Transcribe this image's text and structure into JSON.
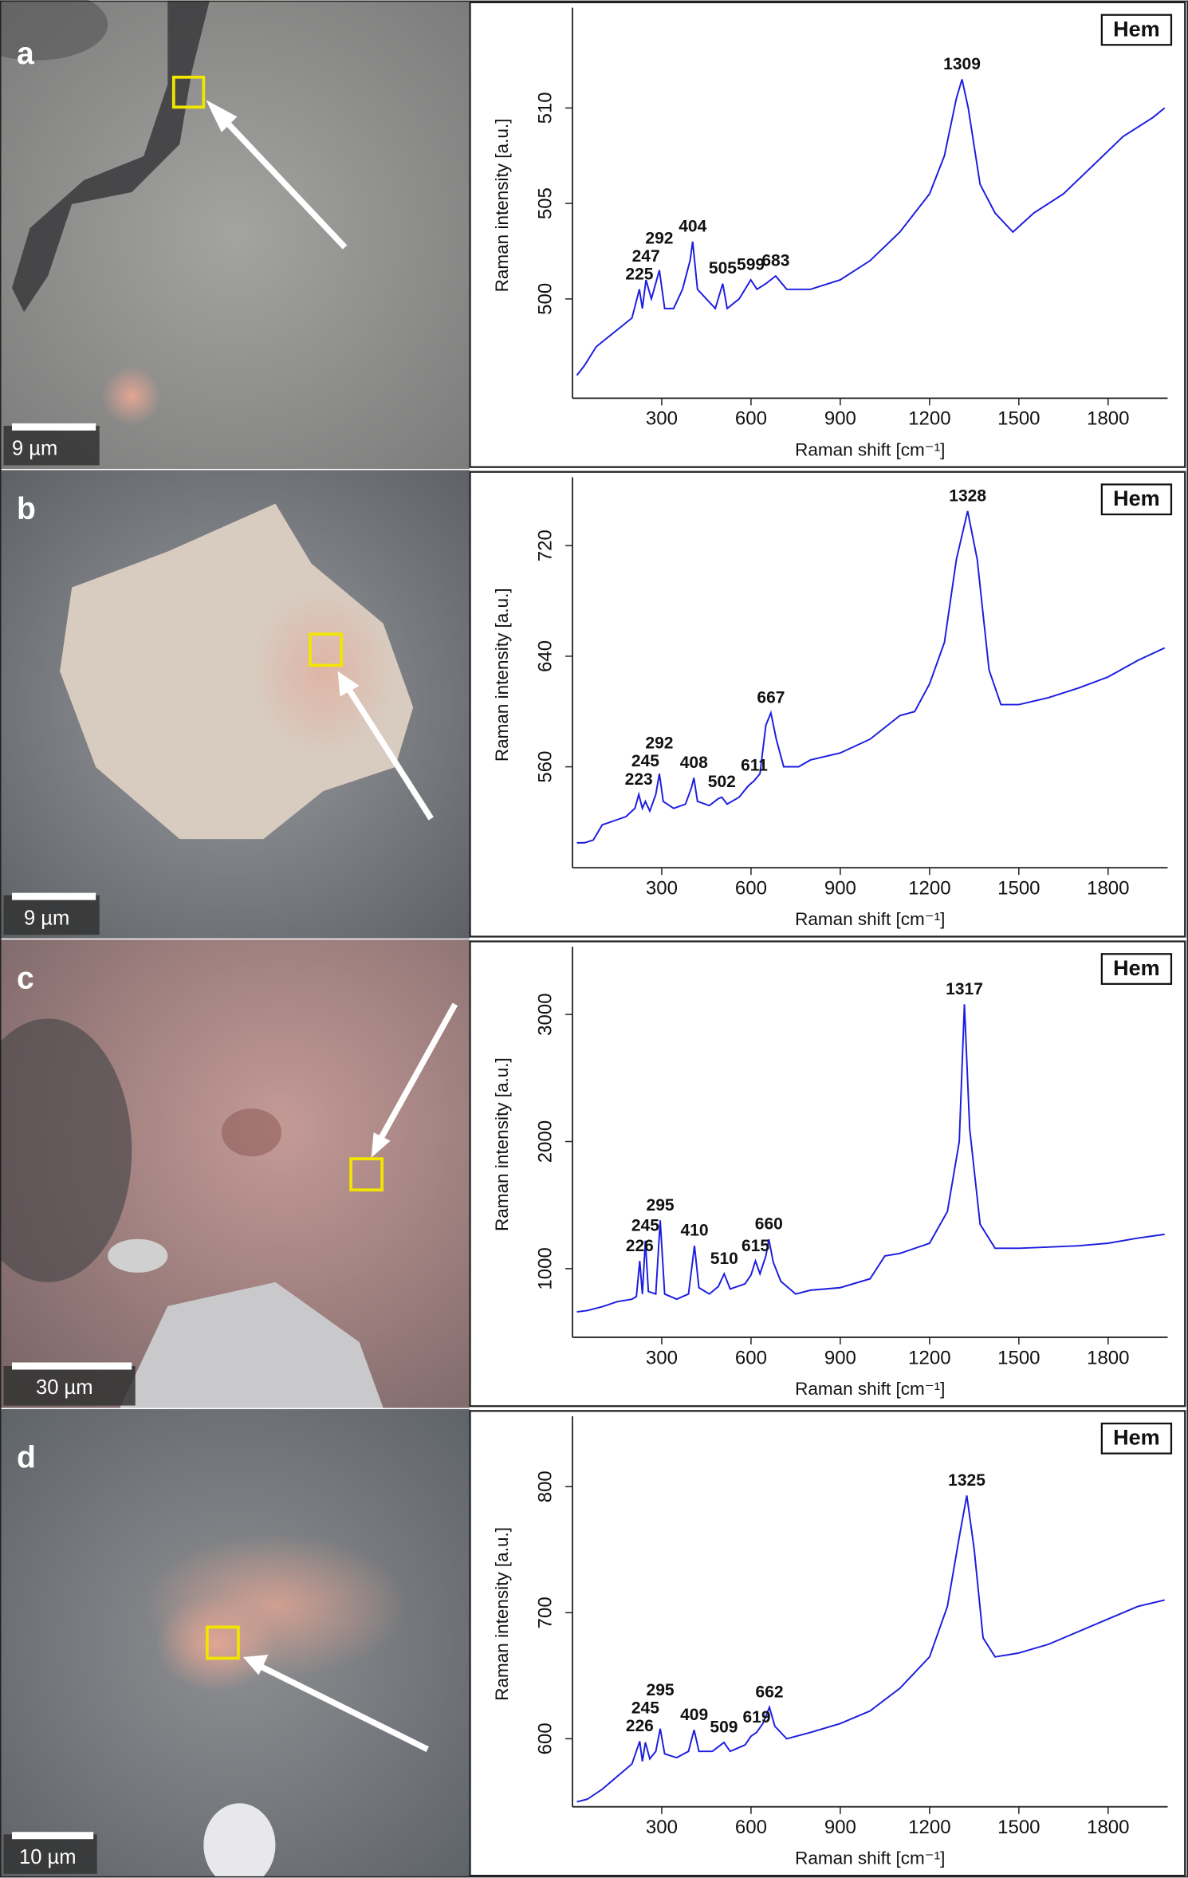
{
  "chart_data": [
    {
      "type": "line",
      "panel": "a",
      "label": "Hem",
      "scale_bar": "9 µm",
      "color": "#1c1ce0",
      "x_label": "Raman shift [cm⁻¹]",
      "y_label": "Raman intensity [a.u.]",
      "xlim": [
        0,
        2000
      ],
      "xticks": [
        300,
        600,
        900,
        1200,
        1500,
        1800
      ],
      "ylim": [
        494.8,
        515
      ],
      "yticks": [
        500,
        505,
        510
      ],
      "x": [
        15,
        40,
        80,
        120,
        160,
        200,
        225,
        235,
        247,
        265,
        292,
        310,
        340,
        370,
        395,
        404,
        420,
        450,
        480,
        505,
        520,
        560,
        599,
        620,
        650,
        683,
        720,
        800,
        900,
        1000,
        1100,
        1200,
        1250,
        1290,
        1309,
        1330,
        1370,
        1420,
        1480,
        1550,
        1650,
        1750,
        1850,
        1950,
        1990
      ],
      "values": [
        496,
        496.5,
        497.5,
        498,
        498.5,
        499,
        500.5,
        499.5,
        501,
        500,
        501.5,
        499.5,
        499.5,
        500.5,
        502,
        503,
        500.5,
        500,
        499.5,
        500.8,
        499.5,
        500,
        501,
        500.5,
        500.8,
        501.2,
        500.5,
        500.5,
        501,
        502,
        503.5,
        505.5,
        507.5,
        510.5,
        511.5,
        510,
        506,
        504.5,
        503.5,
        504.5,
        505.5,
        507,
        508.5,
        509.5,
        510
      ],
      "peaks": [
        225,
        247,
        292,
        404,
        505,
        599,
        683,
        1309
      ]
    },
    {
      "type": "line",
      "panel": "b",
      "label": "Hem",
      "scale_bar": "9 µm",
      "color": "#1c1ce0",
      "x_label": "Raman shift [cm⁻¹]",
      "y_label": "Raman intensity [a.u.]",
      "xlim": [
        0,
        2000
      ],
      "xticks": [
        300,
        600,
        900,
        1200,
        1500,
        1800
      ],
      "ylim": [
        487,
        766
      ],
      "yticks": [
        560,
        640,
        720
      ],
      "x": [
        15,
        40,
        70,
        100,
        140,
        180,
        210,
        223,
        235,
        245,
        260,
        280,
        292,
        305,
        340,
        380,
        400,
        408,
        420,
        460,
        490,
        502,
        520,
        560,
        590,
        611,
        630,
        650,
        667,
        685,
        710,
        760,
        800,
        900,
        1000,
        1100,
        1150,
        1200,
        1250,
        1290,
        1328,
        1360,
        1400,
        1440,
        1500,
        1600,
        1700,
        1800,
        1900,
        1990
      ],
      "values": [
        505,
        505,
        507,
        518,
        521,
        524,
        530,
        540,
        530,
        535,
        528,
        540,
        555,
        535,
        530,
        533,
        545,
        552,
        535,
        532,
        537,
        538,
        533,
        538,
        546,
        550,
        555,
        590,
        599,
        580,
        560,
        560,
        565,
        570,
        580,
        597,
        600,
        620,
        650,
        710,
        745,
        710,
        630,
        605,
        605,
        610,
        617,
        625,
        637,
        646
      ],
      "peaks": [
        223,
        245,
        292,
        408,
        502,
        611,
        667,
        1328
      ]
    },
    {
      "type": "line",
      "panel": "c",
      "label": "Hem",
      "scale_bar": "30 µm",
      "color": "#1c1ce0",
      "x_label": "Raman shift [cm⁻¹]",
      "y_label": "Raman intensity [a.u.]",
      "xlim": [
        0,
        2000
      ],
      "xticks": [
        300,
        600,
        900,
        1200,
        1500,
        1800
      ],
      "ylim": [
        460,
        3495
      ],
      "yticks": [
        1000,
        2000,
        3000
      ],
      "x": [
        15,
        50,
        100,
        150,
        200,
        215,
        226,
        235,
        245,
        255,
        280,
        295,
        310,
        350,
        390,
        410,
        425,
        460,
        490,
        510,
        530,
        580,
        600,
        615,
        630,
        650,
        660,
        675,
        700,
        750,
        800,
        900,
        1000,
        1050,
        1100,
        1200,
        1260,
        1300,
        1317,
        1335,
        1370,
        1420,
        1500,
        1600,
        1700,
        1800,
        1900,
        1990
      ],
      "values": [
        660,
        670,
        700,
        740,
        760,
        780,
        1060,
        800,
        1220,
        820,
        800,
        1380,
        800,
        760,
        800,
        1180,
        850,
        800,
        860,
        960,
        840,
        880,
        950,
        1060,
        960,
        1100,
        1230,
        1050,
        900,
        800,
        830,
        850,
        920,
        1100,
        1120,
        1200,
        1450,
        2000,
        3080,
        2100,
        1350,
        1160,
        1160,
        1170,
        1180,
        1200,
        1240,
        1270
      ],
      "peaks": [
        226,
        245,
        295,
        410,
        510,
        615,
        660,
        1317
      ]
    },
    {
      "type": "line",
      "panel": "d",
      "label": "Hem",
      "scale_bar": "10 µm",
      "color": "#1c1ce0",
      "x_label": "Raman shift [cm⁻¹]",
      "y_label": "Raman intensity [a.u.]",
      "xlim": [
        0,
        2000
      ],
      "xticks": [
        300,
        600,
        900,
        1200,
        1500,
        1800
      ],
      "ylim": [
        546,
        852
      ],
      "yticks": [
        600,
        700,
        800
      ],
      "x": [
        15,
        50,
        100,
        150,
        200,
        226,
        235,
        245,
        260,
        280,
        295,
        310,
        350,
        390,
        409,
        425,
        470,
        509,
        530,
        580,
        600,
        619,
        640,
        662,
        680,
        720,
        800,
        900,
        1000,
        1100,
        1200,
        1260,
        1300,
        1325,
        1350,
        1380,
        1420,
        1500,
        1600,
        1700,
        1800,
        1900,
        1990
      ],
      "values": [
        550,
        552,
        560,
        570,
        580,
        598,
        582,
        597,
        584,
        590,
        608,
        588,
        585,
        590,
        607,
        590,
        590,
        597,
        590,
        595,
        602,
        605,
        612,
        625,
        610,
        600,
        605,
        612,
        622,
        640,
        665,
        705,
        760,
        793,
        750,
        680,
        665,
        668,
        675,
        685,
        695,
        705,
        710
      ],
      "peaks": [
        226,
        245,
        295,
        409,
        509,
        619,
        662,
        1325
      ]
    }
  ]
}
